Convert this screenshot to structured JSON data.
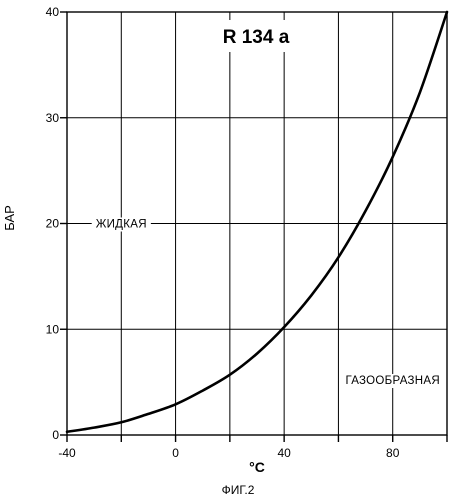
{
  "chart_data": {
    "type": "line",
    "title": "R 134 a",
    "xlabel": "°C",
    "ylabel": "БАР",
    "xlim": [
      -40,
      100
    ],
    "ylim": [
      0,
      40
    ],
    "x_ticks": [
      -40,
      0,
      40,
      80
    ],
    "x_tick_labels": [
      "-40",
      "0",
      "40",
      "80"
    ],
    "x_grid": [
      -40,
      -20,
      0,
      20,
      40,
      60,
      80,
      100
    ],
    "y_ticks": [
      0,
      10,
      20,
      30,
      40
    ],
    "y_tick_labels": [
      "0",
      "10",
      "20",
      "30",
      "40"
    ],
    "y_grid": [
      0,
      10,
      20,
      30,
      40
    ],
    "grid": true,
    "series": [
      {
        "x": [
          -40,
          -30,
          -20,
          -10,
          0,
          10,
          20,
          30,
          40,
          50,
          60,
          70,
          80,
          90,
          100
        ],
        "values": [
          0.3,
          0.7,
          1.2,
          2.0,
          2.9,
          4.2,
          5.7,
          7.7,
          10.2,
          13.2,
          16.8,
          21.2,
          26.3,
          32.4,
          40.0
        ]
      }
    ],
    "annotations": [
      {
        "text": "ЖИДКАЯ",
        "x": -20,
        "y": 20
      },
      {
        "text": "ГАЗООБРАЗНАЯ",
        "x": 80,
        "y": 5.2
      }
    ],
    "caption": "ФИГ.2"
  }
}
